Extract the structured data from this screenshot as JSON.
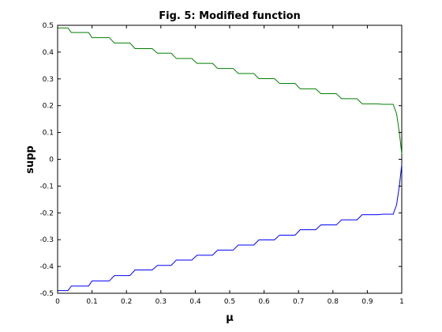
{
  "chart_data": {
    "type": "line",
    "title": "Fig. 5: Modified function",
    "xlabel": "μ",
    "ylabel": "supp",
    "xlim": [
      0,
      1
    ],
    "ylim": [
      -0.5,
      0.5
    ],
    "grid": false,
    "xticks": [
      0,
      0.1,
      0.2,
      0.3,
      0.4,
      0.5,
      0.6,
      0.7,
      0.8,
      0.9,
      1
    ],
    "xtick_labels": [
      "0",
      "0.1",
      "0.2",
      "0.3",
      "0.4",
      "0.5",
      "0.6",
      "0.7",
      "0.8",
      "0.9",
      "1"
    ],
    "yticks": [
      0.5,
      0.4,
      0.3,
      0.2,
      0.1,
      0,
      -0.1,
      -0.2,
      -0.3,
      -0.4,
      -0.5
    ],
    "ytick_labels": [
      "0.5",
      "0.4",
      "0.3",
      "0.2",
      "0.1",
      "0",
      "-0.1",
      "-0.2",
      "-0.3",
      "-0.4",
      "-0.5"
    ],
    "series": [
      {
        "color": "#008000",
        "x": [
          0,
          0.03,
          0.04,
          0.09,
          0.1,
          0.15,
          0.165,
          0.21,
          0.225,
          0.275,
          0.29,
          0.33,
          0.345,
          0.39,
          0.405,
          0.45,
          0.465,
          0.51,
          0.525,
          0.57,
          0.585,
          0.63,
          0.645,
          0.69,
          0.705,
          0.75,
          0.765,
          0.81,
          0.825,
          0.87,
          0.885,
          0.93,
          0.945,
          0.975,
          0.985,
          0.993,
          1.0
        ],
        "y": [
          0.49,
          0.49,
          0.473,
          0.473,
          0.454,
          0.454,
          0.434,
          0.434,
          0.413,
          0.413,
          0.396,
          0.396,
          0.376,
          0.376,
          0.358,
          0.358,
          0.339,
          0.339,
          0.32,
          0.32,
          0.301,
          0.301,
          0.283,
          0.283,
          0.263,
          0.263,
          0.245,
          0.245,
          0.226,
          0.226,
          0.207,
          0.207,
          0.205,
          0.205,
          0.17,
          0.1,
          0.02
        ]
      },
      {
        "color": "#0000ff",
        "x": [
          0,
          0.03,
          0.04,
          0.09,
          0.1,
          0.15,
          0.165,
          0.21,
          0.225,
          0.275,
          0.29,
          0.33,
          0.345,
          0.39,
          0.405,
          0.45,
          0.465,
          0.51,
          0.525,
          0.57,
          0.585,
          0.63,
          0.645,
          0.69,
          0.705,
          0.75,
          0.765,
          0.81,
          0.825,
          0.87,
          0.885,
          0.93,
          0.945,
          0.975,
          0.985,
          0.993,
          1.0
        ],
        "y": [
          -0.49,
          -0.49,
          -0.473,
          -0.473,
          -0.454,
          -0.454,
          -0.434,
          -0.434,
          -0.413,
          -0.413,
          -0.396,
          -0.396,
          -0.376,
          -0.376,
          -0.358,
          -0.358,
          -0.339,
          -0.339,
          -0.32,
          -0.32,
          -0.301,
          -0.301,
          -0.283,
          -0.283,
          -0.263,
          -0.263,
          -0.245,
          -0.245,
          -0.226,
          -0.226,
          -0.207,
          -0.207,
          -0.205,
          -0.205,
          -0.17,
          -0.1,
          -0.02
        ]
      }
    ]
  }
}
